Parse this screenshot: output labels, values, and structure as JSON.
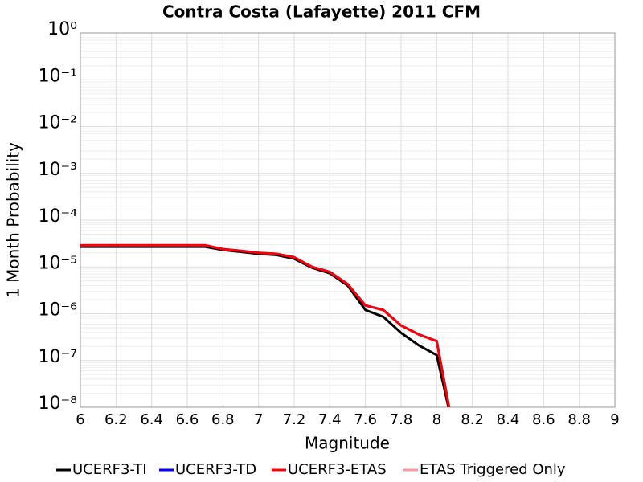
{
  "chart_data": {
    "type": "line",
    "title": "Contra Costa (Lafayette) 2011 CFM",
    "xlabel": "Magnitude",
    "ylabel": "1 Month Probability",
    "x": [
      6.0,
      6.1,
      6.2,
      6.3,
      6.4,
      6.5,
      6.6,
      6.7,
      6.8,
      6.9,
      7.0,
      7.1,
      7.2,
      7.3,
      7.4,
      7.5,
      7.6,
      7.7,
      7.8,
      7.9,
      8.0,
      8.1
    ],
    "series": [
      {
        "name": "UCERF3-TI",
        "color": "#000000",
        "values": [
          2.7e-05,
          2.7e-05,
          2.7e-05,
          2.7e-05,
          2.7e-05,
          2.7e-05,
          2.7e-05,
          2.7e-05,
          2.3e-05,
          2.1e-05,
          1.9e-05,
          1.8e-05,
          1.5e-05,
          9.6e-06,
          7.3e-06,
          4e-06,
          1.2e-06,
          8.6e-07,
          3.9e-07,
          2.1e-07,
          1.3e-07,
          2.7e-09
        ]
      },
      {
        "name": "UCERF3-TD",
        "color": "#0000ff",
        "values": [
          2.9e-05,
          2.9e-05,
          2.9e-05,
          2.9e-05,
          2.9e-05,
          2.9e-05,
          2.9e-05,
          2.9e-05,
          2.4e-05,
          2.2e-05,
          2e-05,
          1.9e-05,
          1.6e-05,
          1e-05,
          7.8e-06,
          4.3e-06,
          1.5e-06,
          1.2e-06,
          5.6e-07,
          3.6e-07,
          2.6e-07,
          2.4e-09
        ]
      },
      {
        "name": "UCERF3-ETAS",
        "color": "#ff0000",
        "values": [
          2.9e-05,
          2.9e-05,
          2.9e-05,
          2.9e-05,
          2.9e-05,
          2.9e-05,
          2.9e-05,
          2.9e-05,
          2.4e-05,
          2.2e-05,
          2e-05,
          1.9e-05,
          1.6e-05,
          1e-05,
          7.8e-06,
          4.3e-06,
          1.5e-06,
          1.2e-06,
          5.6e-07,
          3.6e-07,
          2.6e-07,
          2.4e-09
        ]
      },
      {
        "name": "ETAS Triggered Only",
        "color": "#ff9999",
        "values": [
          null,
          null,
          null,
          null,
          null,
          null,
          null,
          null,
          null,
          null,
          null,
          null,
          null,
          null,
          null,
          null,
          null,
          null,
          null,
          null,
          null,
          null
        ]
      }
    ],
    "xlim": [
      6,
      9
    ],
    "xticks": [
      6,
      6.2,
      6.4,
      6.6,
      6.8,
      7,
      7.2,
      7.4,
      7.6,
      7.8,
      8,
      8.2,
      8.4,
      8.6,
      8.8,
      9
    ],
    "ylim": [
      1e-08,
      1
    ],
    "yticks": [
      {
        "value": 1e-08,
        "label": "10⁻⁸"
      },
      {
        "value": 1e-07,
        "label": "10⁻⁷"
      },
      {
        "value": 1e-06,
        "label": "10⁻⁶"
      },
      {
        "value": 1e-05,
        "label": "10⁻⁵"
      },
      {
        "value": 0.0001,
        "label": "10⁻⁴"
      },
      {
        "value": 0.001,
        "label": "10⁻³"
      },
      {
        "value": 0.01,
        "label": "10⁻²"
      },
      {
        "value": 0.1,
        "label": "10⁻¹"
      },
      {
        "value": 1,
        "label": "10⁰"
      }
    ],
    "log_y": true,
    "grid": true,
    "legend": "bottom"
  }
}
